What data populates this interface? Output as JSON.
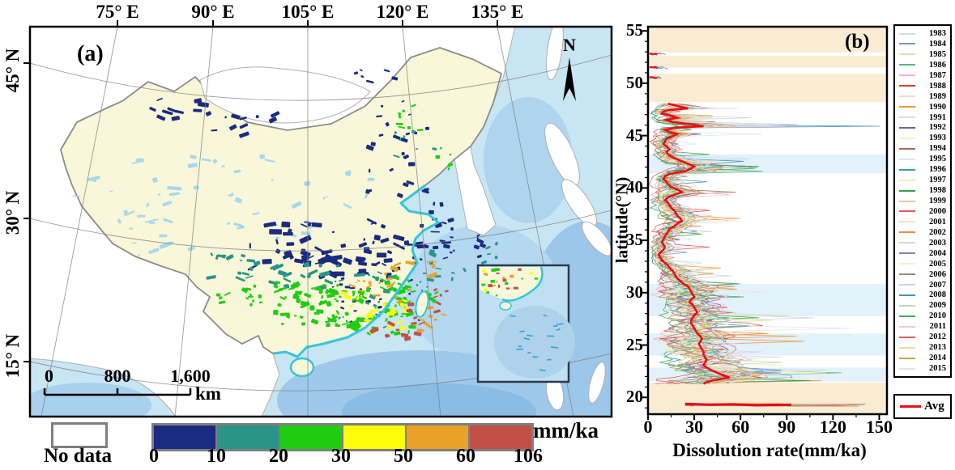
{
  "figure": {
    "panel_a": {
      "label": "(a)",
      "north_label": "N",
      "top_axis_ticks": [
        "75° E",
        "90° E",
        "105° E",
        "120° E",
        "135° E"
      ],
      "left_axis_ticks": [
        "45° N",
        "30° N",
        "15° N"
      ],
      "scale_bar": {
        "ticks": [
          "0",
          "800",
          "1,600"
        ],
        "unit": "km"
      },
      "legend": {
        "no_data_label": "No data",
        "no_data_color": "#a6d9ee",
        "unit_label": "mm/ka",
        "class_breaks": [
          "0",
          "10",
          "20",
          "30",
          "50",
          "60",
          "106"
        ],
        "class_colors": [
          "#1a2b80",
          "#2b948a",
          "#1fce10",
          "#fdfd0a",
          "#e9a227",
          "#c05048"
        ]
      },
      "map_colors": {
        "sea": "#c8e5f4",
        "sea_deep": "#9fc9ea",
        "china_fill": "#f8f7d9",
        "foreign_land": "#ffffff",
        "china_border": "#8c8c8c",
        "coastline_accent": "#33c6dd"
      }
    },
    "panel_b": {
      "label": "(b)",
      "x_axis": {
        "label": "Dissolution rate(mm/ka)",
        "ticks": [
          "0",
          "30",
          "60",
          "90",
          "120",
          "150"
        ]
      },
      "y_axis": {
        "label": "latitude(°N)",
        "ticks": [
          "20",
          "25",
          "30",
          "35",
          "40",
          "45",
          "50",
          "55"
        ]
      },
      "avg_legend_label": "Avg",
      "band_colors": {
        "orange": "#faecd2",
        "blue": "#e2f1fa"
      }
    }
  },
  "chart_data": {
    "type": "line",
    "title": "(b)",
    "xlabel": "Dissolution rate(mm/ka)",
    "ylabel": "latitude(°N)",
    "xlim": [
      0,
      155
    ],
    "ylim": [
      18.4,
      55.4
    ],
    "x_ticks": [
      0,
      30,
      60,
      90,
      120,
      150
    ],
    "y_ticks": [
      20,
      25,
      30,
      35,
      40,
      45,
      50,
      55
    ],
    "grid": false,
    "legend_position": "outside-right",
    "years": [
      {
        "year": "1983",
        "color": "#cfe0ea"
      },
      {
        "year": "1984",
        "color": "#6f9ec9"
      },
      {
        "year": "1985",
        "color": "#cdeab2"
      },
      {
        "year": "1986",
        "color": "#56b87c"
      },
      {
        "year": "1987",
        "color": "#f2b6c4"
      },
      {
        "year": "1988",
        "color": "#e23c34"
      },
      {
        "year": "1989",
        "color": "#f6d7d2"
      },
      {
        "year": "1990",
        "color": "#f09a38"
      },
      {
        "year": "1991",
        "color": "#d9dde1"
      },
      {
        "year": "1992",
        "color": "#5a6c9e"
      },
      {
        "year": "1993",
        "color": "#f6efc6"
      },
      {
        "year": "1994",
        "color": "#b06a58"
      },
      {
        "year": "1995",
        "color": "#d6edf2"
      },
      {
        "year": "1996",
        "color": "#38a09c"
      },
      {
        "year": "1997",
        "color": "#f1efbe"
      },
      {
        "year": "1998",
        "color": "#35a344"
      },
      {
        "year": "1999",
        "color": "#f6c795"
      },
      {
        "year": "2000",
        "color": "#e8565e"
      },
      {
        "year": "2001",
        "color": "#f6e0c0"
      },
      {
        "year": "2002",
        "color": "#e98f3e"
      },
      {
        "year": "2003",
        "color": "#d9d9d9"
      },
      {
        "year": "2004",
        "color": "#8b7cb5"
      },
      {
        "year": "2005",
        "color": "#f6f1c7"
      },
      {
        "year": "2006",
        "color": "#a18a79"
      },
      {
        "year": "2007",
        "color": "#c9d5dd"
      },
      {
        "year": "2008",
        "color": "#4a90c5"
      },
      {
        "year": "2009",
        "color": "#c2d9b1"
      },
      {
        "year": "2010",
        "color": "#47ab5e"
      },
      {
        "year": "2011",
        "color": "#f2c9d1"
      },
      {
        "year": "2012",
        "color": "#e05f5f"
      },
      {
        "year": "2013",
        "color": "#ead99a"
      },
      {
        "year": "2014",
        "color": "#d9a049"
      },
      {
        "year": "2015",
        "color": "#e1e5e9"
      }
    ],
    "avg_series": {
      "name": "Avg",
      "color": "#e81010",
      "points": [
        [
          48.05,
          13
        ],
        [
          47.8,
          20
        ],
        [
          47.6,
          26
        ],
        [
          47.45,
          14
        ],
        [
          47.3,
          10
        ],
        [
          47.1,
          9
        ],
        [
          46.9,
          15
        ],
        [
          46.7,
          19
        ],
        [
          46.5,
          12
        ],
        [
          46.3,
          16
        ],
        [
          46.05,
          30
        ],
        [
          45.9,
          36
        ],
        [
          45.75,
          18
        ],
        [
          45.55,
          11
        ],
        [
          45.35,
          14
        ],
        [
          45.15,
          19
        ],
        [
          44.95,
          16
        ],
        [
          44.7,
          12
        ],
        [
          44.45,
          11
        ],
        [
          44.2,
          10
        ],
        [
          43.95,
          12
        ],
        [
          43.7,
          14
        ],
        [
          43.45,
          12
        ],
        [
          43.2,
          13
        ],
        [
          43.0,
          15
        ],
        [
          42.8,
          18
        ],
        [
          42.55,
          22
        ],
        [
          42.3,
          26
        ],
        [
          42.05,
          30
        ],
        [
          41.85,
          28
        ],
        [
          41.6,
          24
        ],
        [
          41.35,
          14
        ],
        [
          41.1,
          11
        ],
        [
          40.85,
          10
        ],
        [
          40.6,
          12
        ],
        [
          40.35,
          13
        ],
        [
          40.1,
          15
        ],
        [
          39.85,
          19
        ],
        [
          39.6,
          22
        ],
        [
          39.35,
          17
        ],
        [
          39.1,
          13
        ],
        [
          38.85,
          11
        ],
        [
          38.6,
          13
        ],
        [
          38.35,
          14
        ],
        [
          38.1,
          15
        ],
        [
          37.85,
          17
        ],
        [
          37.6,
          18
        ],
        [
          37.35,
          19
        ],
        [
          37.1,
          21
        ],
        [
          36.85,
          22
        ],
        [
          36.6,
          19
        ],
        [
          36.35,
          17
        ],
        [
          36.1,
          14
        ],
        [
          35.85,
          13
        ],
        [
          35.6,
          12
        ],
        [
          35.35,
          11
        ],
        [
          35.1,
          10
        ],
        [
          34.85,
          9
        ],
        [
          34.6,
          10
        ],
        [
          34.35,
          11
        ],
        [
          34.1,
          10
        ],
        [
          33.85,
          8
        ],
        [
          33.6,
          7
        ],
        [
          33.35,
          8
        ],
        [
          33.1,
          9
        ],
        [
          32.85,
          11
        ],
        [
          32.6,
          13
        ],
        [
          32.35,
          14
        ],
        [
          32.1,
          16
        ],
        [
          31.85,
          17
        ],
        [
          31.6,
          18
        ],
        [
          31.35,
          19
        ],
        [
          31.1,
          21
        ],
        [
          30.85,
          23
        ],
        [
          30.6,
          26
        ],
        [
          30.35,
          27
        ],
        [
          30.1,
          28
        ],
        [
          29.85,
          29
        ],
        [
          29.6,
          30
        ],
        [
          29.35,
          28
        ],
        [
          29.1,
          27
        ],
        [
          28.85,
          29
        ],
        [
          28.6,
          30
        ],
        [
          28.35,
          31
        ],
        [
          28.1,
          32
        ],
        [
          27.85,
          30
        ],
        [
          27.6,
          29
        ],
        [
          27.35,
          28
        ],
        [
          27.1,
          28
        ],
        [
          26.85,
          29
        ],
        [
          26.6,
          30
        ],
        [
          26.35,
          31
        ],
        [
          26.1,
          32
        ],
        [
          25.85,
          34
        ],
        [
          25.6,
          35
        ],
        [
          25.35,
          34
        ],
        [
          25.1,
          33
        ],
        [
          24.85,
          34
        ],
        [
          24.6,
          35
        ],
        [
          24.35,
          36
        ],
        [
          24.1,
          36
        ],
        [
          23.85,
          37
        ],
        [
          23.6,
          38
        ],
        [
          23.35,
          37
        ],
        [
          23.1,
          36
        ],
        [
          22.85,
          38
        ],
        [
          22.6,
          41
        ],
        [
          22.35,
          45
        ],
        [
          22.1,
          49
        ],
        [
          21.9,
          53
        ],
        [
          21.75,
          47
        ],
        [
          21.6,
          41
        ],
        [
          21.45,
          38
        ],
        [
          21.3,
          36
        ]
      ]
    },
    "top_fragments": [
      {
        "lat": 52.8,
        "x0": 1,
        "x1": 12
      },
      {
        "lat": 51.5,
        "x0": 1,
        "x1": 16
      },
      {
        "lat": 50.55,
        "x0": 1,
        "x1": 13
      }
    ],
    "bottom_segment": {
      "lat": 19.3,
      "x0": 24,
      "x1_avg": 93,
      "x1_max": 155
    },
    "bands": {
      "orange": [
        [
          55.4,
          48.2
        ],
        [
          21.4,
          18.4
        ]
      ],
      "orange_gaps": [
        [
          52.95,
          52.6
        ],
        [
          51.5,
          50.9
        ]
      ],
      "blue": [
        [
          43.2,
          41.4
        ],
        [
          30.85,
          27.75
        ],
        [
          26.1,
          24.0
        ],
        [
          22.85,
          21.5
        ]
      ]
    }
  }
}
